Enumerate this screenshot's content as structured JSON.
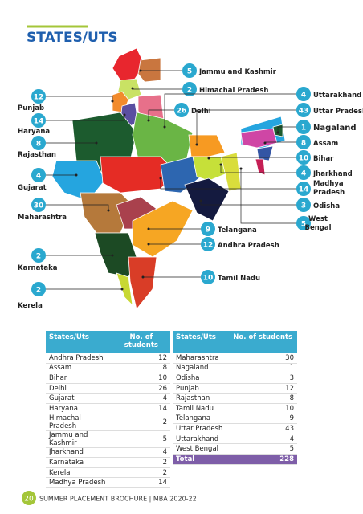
{
  "header": {
    "title": "STATES/UTS"
  },
  "map_labels": [
    {
      "count": 5,
      "state": "Jammu and Kashmir"
    },
    {
      "count": 2,
      "state": "Himachal Pradesh"
    },
    {
      "count": 26,
      "state": "Delhi"
    },
    {
      "count": 12,
      "state": "Punjab"
    },
    {
      "count": 14,
      "state": "Haryana"
    },
    {
      "count": 8,
      "state": "Rajasthan"
    },
    {
      "count": 4,
      "state": "Gujarat"
    },
    {
      "count": 30,
      "state": "Maharashtra"
    },
    {
      "count": 2,
      "state": "Karnataka"
    },
    {
      "count": 2,
      "state": "Kerela"
    },
    {
      "count": 9,
      "state": "Telangana"
    },
    {
      "count": 12,
      "state": "Andhra Pradesh"
    },
    {
      "count": 10,
      "state": "Tamil Nadu"
    },
    {
      "count": 4,
      "state": "Uttarakhand"
    },
    {
      "count": 43,
      "state": "Uttar Pradesh"
    },
    {
      "count": 1,
      "state": "Nagaland"
    },
    {
      "count": 8,
      "state": "Assam"
    },
    {
      "count": 10,
      "state": "Bihar"
    },
    {
      "count": 4,
      "state": "Jharkhand"
    },
    {
      "count": 14,
      "state": "Madhya Pradesh"
    },
    {
      "count": 3,
      "state": "Odisha"
    },
    {
      "count": 5,
      "state": "West Bengal"
    }
  ],
  "tables": [
    {
      "headers": [
        "States/Uts",
        "No. of students"
      ],
      "rows": [
        [
          "Andhra Pradesh",
          12
        ],
        [
          "Assam",
          8
        ],
        [
          "Bihar",
          10
        ],
        [
          "Delhi",
          26
        ],
        [
          "Gujarat",
          4
        ],
        [
          "Haryana",
          14
        ],
        [
          "Himachal Pradesh",
          2
        ],
        [
          "Jammu and Kashmir",
          5
        ],
        [
          "Jharkhand",
          4
        ],
        [
          "Karnataka",
          2
        ],
        [
          "Kerela",
          2
        ],
        [
          "Madhya Pradesh",
          14
        ]
      ]
    },
    {
      "headers": [
        "States/Uts",
        "No. of students"
      ],
      "rows": [
        [
          "Maharashtra",
          30
        ],
        [
          "Nagaland",
          1
        ],
        [
          "Odisha",
          3
        ],
        [
          "Punjab",
          12
        ],
        [
          "Rajasthan",
          8
        ],
        [
          "Tamil Nadu",
          10
        ],
        [
          "Telangana",
          9
        ],
        [
          "Uttar Pradesh",
          43
        ],
        [
          "Uttarakhand",
          4
        ],
        [
          "West Bengal",
          5
        ]
      ],
      "total": [
        "Total",
        228
      ]
    }
  ],
  "footer": {
    "page": 20,
    "text": "SUMMER PLACEMENT BROCHURE | MBA 2020-22"
  }
}
